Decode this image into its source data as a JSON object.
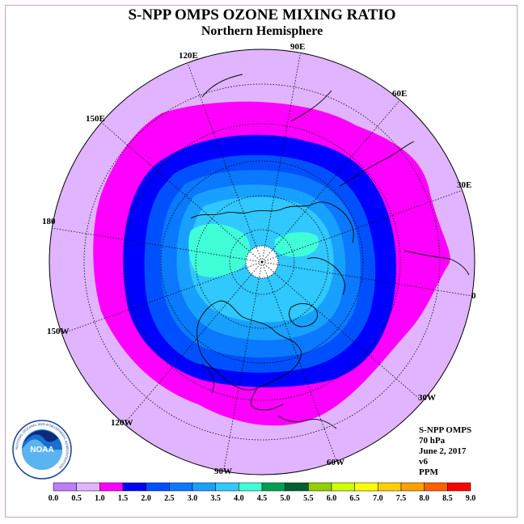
{
  "header": {
    "title": "S-NPP OMPS OZONE MIXING RATIO",
    "subtitle": "Northern Hemisphere"
  },
  "map": {
    "projection": "north-polar-stereographic",
    "center_latitude": 90,
    "no_data_color": "#ffffff",
    "longitude_labels": [
      "90E",
      "60E",
      "30E",
      "0",
      "30W",
      "60W",
      "90W",
      "120W",
      "150W",
      "180",
      "150E",
      "120E"
    ]
  },
  "info_block": {
    "instrument": "S-NPP OMPS",
    "level": "70 hPa",
    "date": "June 2, 2017",
    "version": "v6",
    "units": "PPM"
  },
  "colorbar": {
    "tick_labels": [
      "0.0",
      "0.5",
      "1.0",
      "1.5",
      "2.0",
      "2.5",
      "3.0",
      "3.5",
      "4.0",
      "4.5",
      "5.0",
      "5.5",
      "6.0",
      "6.5",
      "7.0",
      "7.5",
      "8.0",
      "8.5",
      "9.0"
    ],
    "colors": [
      "#c07cff",
      "#e0b4ff",
      "#ff00ff",
      "#0000ff",
      "#0050ff",
      "#0a78ff",
      "#18a0ff",
      "#30c8ff",
      "#40ffd8",
      "#00a050",
      "#006030",
      "#90d000",
      "#d0ff00",
      "#ffff00",
      "#ffd000",
      "#ffa000",
      "#ff6000",
      "#ff0000",
      "#8b5a3c"
    ]
  },
  "logo": {
    "text": "NOAA",
    "ring_text": "NATIONAL OCEANIC AND ATMOSPHERIC ADMINISTRATION"
  }
}
